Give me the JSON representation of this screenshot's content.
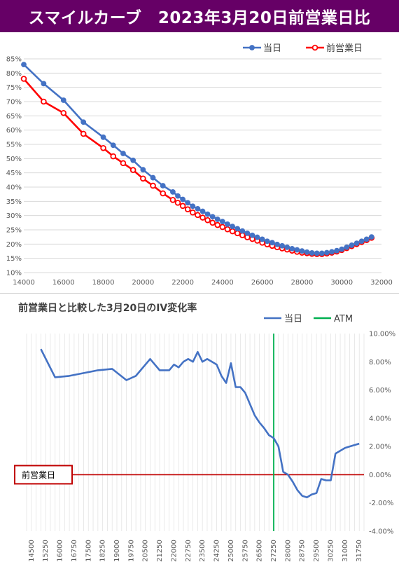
{
  "title": "スマイルカーブ　2023年3月20日前営業日比",
  "colors": {
    "title_bg": "#660066",
    "today": "#4472C4",
    "prev_day": "#FF0000",
    "iv_change": "#4472C4",
    "atm": "#00B050",
    "zero_line": "#C00000",
    "grid": "#D9D9D9"
  },
  "chart_data": [
    {
      "type": "line",
      "title": "",
      "xlim": [
        14000,
        32000
      ],
      "ylim": [
        0.1,
        0.85
      ],
      "x_ticks": [
        "14000",
        "16000",
        "18000",
        "20000",
        "22000",
        "24000",
        "26000",
        "28000",
        "30000",
        "32000"
      ],
      "y_ticks": [
        "10%",
        "15%",
        "20%",
        "25%",
        "30%",
        "35%",
        "40%",
        "45%",
        "50%",
        "55%",
        "60%",
        "65%",
        "70%",
        "75%",
        "80%",
        "85%"
      ],
      "legend": "top-right",
      "grid": "horizontal",
      "series": [
        {
          "name": "当日",
          "x": [
            14000,
            15000,
            16000,
            17000,
            18000,
            18500,
            19000,
            19500,
            20000,
            20500,
            21000,
            21500,
            21750,
            22000,
            22250,
            22500,
            22750,
            23000,
            23250,
            23500,
            23750,
            24000,
            24250,
            24500,
            24750,
            25000,
            25250,
            25500,
            25750,
            26000,
            26250,
            26500,
            26750,
            27000,
            27250,
            27500,
            27750,
            28000,
            28250,
            28500,
            28750,
            29000,
            29250,
            29500,
            29750,
            30000,
            30250,
            30500,
            30750,
            31000,
            31250,
            31500
          ],
          "values": [
            0.83,
            0.763,
            0.705,
            0.628,
            0.575,
            0.547,
            0.518,
            0.494,
            0.461,
            0.433,
            0.405,
            0.383,
            0.369,
            0.357,
            0.345,
            0.333,
            0.324,
            0.315,
            0.305,
            0.296,
            0.287,
            0.279,
            0.27,
            0.262,
            0.254,
            0.246,
            0.238,
            0.231,
            0.224,
            0.217,
            0.21,
            0.205,
            0.199,
            0.194,
            0.189,
            0.184,
            0.18,
            0.176,
            0.172,
            0.169,
            0.168,
            0.168,
            0.17,
            0.173,
            0.177,
            0.182,
            0.189,
            0.196,
            0.203,
            0.21,
            0.217,
            0.225
          ]
        },
        {
          "name": "前営業日",
          "x": [
            14000,
            15000,
            16000,
            17000,
            18000,
            18500,
            19000,
            19500,
            20000,
            20500,
            21000,
            21500,
            21750,
            22000,
            22250,
            22500,
            22750,
            23000,
            23250,
            23500,
            23750,
            24000,
            24250,
            24500,
            24750,
            25000,
            25250,
            25500,
            25750,
            26000,
            26250,
            26500,
            26750,
            27000,
            27250,
            27500,
            27750,
            28000,
            28250,
            28500,
            28750,
            29000,
            29250,
            29500,
            29750,
            30000,
            30250,
            30500,
            30750,
            31000,
            31250,
            31500
          ],
          "values": [
            0.78,
            0.7,
            0.66,
            0.587,
            0.537,
            0.508,
            0.484,
            0.46,
            0.43,
            0.405,
            0.378,
            0.355,
            0.345,
            0.334,
            0.322,
            0.311,
            0.302,
            0.293,
            0.284,
            0.275,
            0.267,
            0.26,
            0.252,
            0.245,
            0.238,
            0.231,
            0.224,
            0.218,
            0.212,
            0.205,
            0.199,
            0.194,
            0.189,
            0.185,
            0.181,
            0.177,
            0.173,
            0.17,
            0.168,
            0.166,
            0.165,
            0.165,
            0.167,
            0.17,
            0.174,
            0.179,
            0.186,
            0.193,
            0.2,
            0.207,
            0.214,
            0.222
          ]
        }
      ]
    },
    {
      "type": "line",
      "title": "前営業日と比較した3月20日のIV変化率",
      "x_ticks": [
        "14500",
        "15250",
        "16000",
        "16750",
        "17500",
        "18250",
        "19000",
        "19750",
        "20500",
        "21250",
        "22000",
        "22750",
        "23500",
        "24250",
        "25000",
        "25750",
        "26500",
        "27250",
        "28000",
        "28750",
        "29500",
        "30250",
        "31000",
        "31750"
      ],
      "ylim": [
        -0.04,
        0.1
      ],
      "y_ticks": [
        "10.00%",
        "8.00%",
        "6.00%",
        "4.00%",
        "2.00%",
        "0.00%",
        "-2.00%",
        "-4.00%"
      ],
      "legend": "top-right",
      "grid": "vertical",
      "atm_label": "ATM",
      "atm_x": 27250,
      "zero_label": "前営業日",
      "series": [
        {
          "name": "当日",
          "x": [
            15000,
            15750,
            16500,
            17250,
            18000,
            18750,
            19500,
            20000,
            20750,
            21250,
            21750,
            22000,
            22250,
            22500,
            22750,
            23000,
            23250,
            23500,
            23750,
            24000,
            24250,
            24500,
            24750,
            25000,
            25250,
            25500,
            25750,
            26000,
            26250,
            26500,
            26750,
            27000,
            27250,
            27500,
            27750,
            28000,
            28250,
            28500,
            28750,
            29000,
            29250,
            29500,
            29750,
            30000,
            30250,
            30500,
            30750,
            31000,
            31250,
            31500,
            31750
          ],
          "values": [
            0.089,
            0.069,
            0.07,
            0.072,
            0.074,
            0.075,
            0.067,
            0.07,
            0.082,
            0.074,
            0.074,
            0.078,
            0.076,
            0.08,
            0.082,
            0.08,
            0.087,
            0.08,
            0.082,
            0.08,
            0.078,
            0.07,
            0.065,
            0.079,
            0.062,
            0.062,
            0.058,
            0.05,
            0.042,
            0.037,
            0.033,
            0.028,
            0.026,
            0.02,
            0.002,
            0.0,
            -0.005,
            -0.011,
            -0.015,
            -0.016,
            -0.014,
            -0.013,
            -0.003,
            -0.004,
            -0.004,
            0.015,
            0.017,
            0.019,
            0.02,
            0.021,
            0.022
          ]
        }
      ]
    }
  ]
}
